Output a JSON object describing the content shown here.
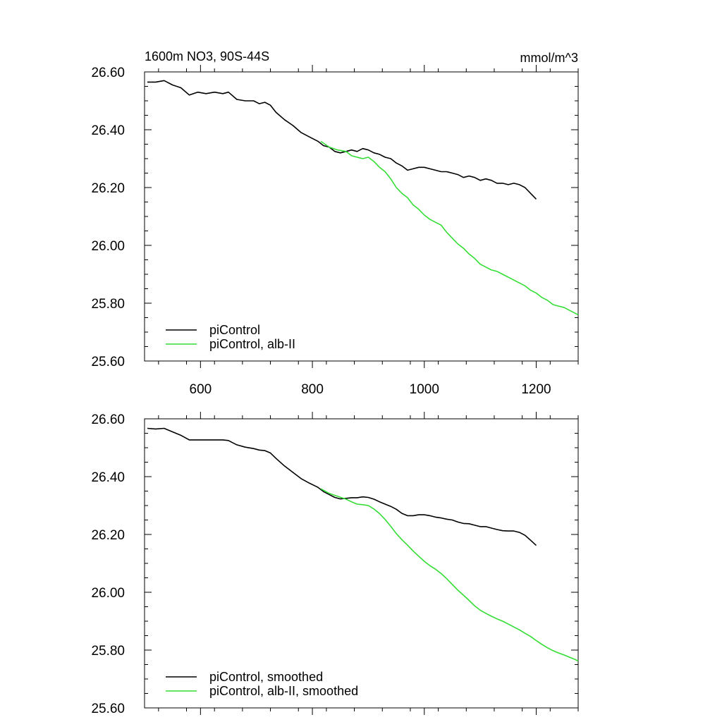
{
  "chart_data": [
    {
      "type": "line",
      "title": "1600m NO3, 90S-44S",
      "units": "mmol/m^3",
      "xlim": [
        500,
        1275
      ],
      "ylim": [
        25.6,
        26.6
      ],
      "x_ticks": [
        600,
        800,
        1000,
        1200
      ],
      "x_tick_labels": [
        "600",
        "800",
        "1000",
        "1200"
      ],
      "y_ticks": [
        25.6,
        25.8,
        26.0,
        26.2,
        26.4,
        26.6
      ],
      "y_tick_labels": [
        "25.60",
        "25.80",
        "26.00",
        "26.20",
        "26.40",
        "26.60"
      ],
      "grid": false,
      "legend_position": "bottom-left",
      "series": [
        {
          "name": "piControl",
          "color": "#000000",
          "x": [
            505,
            520,
            535,
            550,
            565,
            580,
            595,
            610,
            625,
            640,
            650,
            665,
            680,
            695,
            705,
            715,
            725,
            735,
            750,
            765,
            780,
            795,
            810,
            820,
            830,
            840,
            850,
            860,
            870,
            880,
            890,
            900,
            910,
            920,
            930,
            940,
            950,
            960,
            970,
            980,
            990,
            1000,
            1010,
            1020,
            1030,
            1040,
            1050,
            1060,
            1070,
            1080,
            1090,
            1100,
            1110,
            1120,
            1130,
            1140,
            1150,
            1160,
            1170,
            1180,
            1190,
            1200
          ],
          "y": [
            26.565,
            26.565,
            26.57,
            26.555,
            26.545,
            26.52,
            26.53,
            26.525,
            26.53,
            26.525,
            26.53,
            26.505,
            26.5,
            26.5,
            26.49,
            26.495,
            26.485,
            26.46,
            26.435,
            26.415,
            26.39,
            26.375,
            26.36,
            26.345,
            26.34,
            26.325,
            26.32,
            26.325,
            26.33,
            26.325,
            26.335,
            26.33,
            26.32,
            26.315,
            26.305,
            26.3,
            26.285,
            26.275,
            26.26,
            26.265,
            26.27,
            26.27,
            26.265,
            26.26,
            26.255,
            26.255,
            26.25,
            26.245,
            26.235,
            26.24,
            26.235,
            26.225,
            26.23,
            26.225,
            26.215,
            26.215,
            26.21,
            26.215,
            26.21,
            26.2,
            26.18,
            26.16
          ]
        },
        {
          "name": "piControl, alb-II",
          "color": "#33dd33",
          "x": [
            815,
            830,
            845,
            860,
            870,
            880,
            890,
            900,
            910,
            920,
            930,
            940,
            950,
            960,
            970,
            980,
            990,
            1000,
            1010,
            1020,
            1030,
            1040,
            1050,
            1060,
            1070,
            1080,
            1090,
            1100,
            1110,
            1120,
            1130,
            1140,
            1150,
            1160,
            1170,
            1180,
            1190,
            1200,
            1210,
            1220,
            1230,
            1240,
            1250,
            1260,
            1270,
            1275
          ],
          "y": [
            26.36,
            26.34,
            26.33,
            26.325,
            26.31,
            26.305,
            26.3,
            26.305,
            26.29,
            26.27,
            26.255,
            26.23,
            26.2,
            26.18,
            26.165,
            26.14,
            26.125,
            26.105,
            26.09,
            26.08,
            26.07,
            26.045,
            26.025,
            26.005,
            25.99,
            25.97,
            25.955,
            25.935,
            25.925,
            25.915,
            25.91,
            25.9,
            25.89,
            25.88,
            25.87,
            25.86,
            25.845,
            25.835,
            25.82,
            25.81,
            25.795,
            25.79,
            25.785,
            25.775,
            25.765,
            25.76
          ]
        }
      ]
    },
    {
      "type": "line",
      "xlim": [
        500,
        1275
      ],
      "ylim": [
        25.6,
        26.6
      ],
      "x_ticks": [
        600,
        800,
        1000,
        1200
      ],
      "y_ticks": [
        25.6,
        25.8,
        26.0,
        26.2,
        26.4,
        26.6
      ],
      "y_tick_labels": [
        "25.60",
        "25.80",
        "26.00",
        "26.20",
        "26.40",
        "26.60"
      ],
      "grid": false,
      "legend_position": "bottom-left",
      "series": [
        {
          "name": "piControl, smoothed",
          "color": "#000000",
          "x": [
            505,
            520,
            535,
            550,
            565,
            580,
            595,
            610,
            625,
            640,
            650,
            665,
            680,
            695,
            705,
            715,
            725,
            735,
            750,
            765,
            780,
            795,
            810,
            820,
            830,
            840,
            850,
            860,
            870,
            880,
            890,
            900,
            910,
            920,
            930,
            940,
            950,
            960,
            970,
            980,
            990,
            1000,
            1010,
            1020,
            1030,
            1040,
            1050,
            1060,
            1070,
            1080,
            1090,
            1100,
            1110,
            1120,
            1130,
            1140,
            1150,
            1160,
            1170,
            1180,
            1190,
            1200
          ],
          "y": [
            26.567,
            26.565,
            26.567,
            26.555,
            26.543,
            26.527,
            26.527,
            26.527,
            26.527,
            26.527,
            26.525,
            26.51,
            26.502,
            26.497,
            26.492,
            26.49,
            26.482,
            26.463,
            26.437,
            26.415,
            26.393,
            26.377,
            26.363,
            26.348,
            26.338,
            26.328,
            26.323,
            26.325,
            26.327,
            26.327,
            26.33,
            26.328,
            26.322,
            26.313,
            26.305,
            26.297,
            26.287,
            26.273,
            26.265,
            26.265,
            26.268,
            26.268,
            26.265,
            26.26,
            26.257,
            26.253,
            26.25,
            26.243,
            26.238,
            26.237,
            26.232,
            26.227,
            26.227,
            26.222,
            26.217,
            26.213,
            26.212,
            26.212,
            26.207,
            26.197,
            26.18,
            26.162
          ]
        },
        {
          "name": "piControl, alb-II, smoothed",
          "color": "#33dd33",
          "x": [
            815,
            830,
            845,
            860,
            870,
            880,
            890,
            900,
            910,
            920,
            930,
            940,
            950,
            960,
            970,
            980,
            990,
            1000,
            1010,
            1020,
            1030,
            1040,
            1050,
            1060,
            1070,
            1080,
            1090,
            1100,
            1110,
            1120,
            1130,
            1140,
            1150,
            1160,
            1170,
            1180,
            1190,
            1200,
            1210,
            1220,
            1230,
            1240,
            1250,
            1260,
            1270,
            1275
          ],
          "y": [
            26.358,
            26.342,
            26.332,
            26.322,
            26.313,
            26.305,
            26.303,
            26.3,
            26.288,
            26.272,
            26.252,
            26.228,
            26.203,
            26.182,
            26.163,
            26.143,
            26.125,
            26.107,
            26.092,
            26.08,
            26.065,
            26.047,
            26.027,
            26.007,
            25.99,
            25.972,
            25.953,
            25.938,
            25.927,
            25.917,
            25.908,
            25.9,
            25.89,
            25.88,
            25.87,
            25.858,
            25.847,
            25.833,
            25.82,
            25.808,
            25.798,
            25.79,
            25.783,
            25.775,
            25.767,
            25.762
          ]
        }
      ]
    }
  ]
}
